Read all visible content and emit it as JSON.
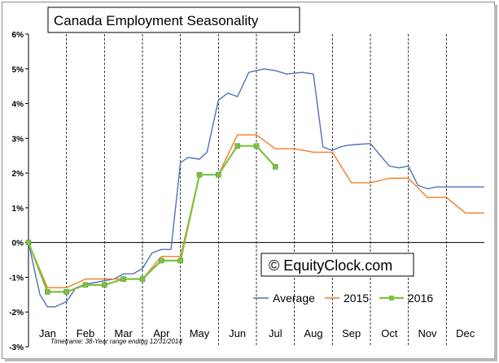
{
  "chart_data": {
    "type": "line",
    "title": "Canada Employment Seasonality",
    "categories": [
      "Jan",
      "Feb",
      "Mar",
      "Apr",
      "May",
      "Jun",
      "Jul",
      "Aug",
      "Sep",
      "Oct",
      "Nov",
      "Dec"
    ],
    "y_ticks": [
      "6%",
      "5%",
      "4%",
      "3%",
      "2%",
      "1%",
      "0%",
      "-1%",
      "-2%",
      "-3%"
    ],
    "ylim": [
      -3,
      6
    ],
    "x_unit": "month index (0 = start of Jan, 12 = end of Dec)",
    "grid": "vertical dashed lines at month boundaries",
    "legend_position": "bottom-right",
    "watermark": "© EquityClock.com",
    "footnote": "Timeframe: 38-Year range ending 12/31/2014",
    "series": [
      {
        "name": "Average",
        "color": "#4f73b8",
        "x": [
          0,
          0.3,
          0.5,
          0.7,
          1.0,
          1.25,
          1.5,
          2.0,
          2.25,
          2.5,
          2.75,
          3.0,
          3.25,
          3.5,
          3.75,
          4.0,
          4.2,
          4.5,
          4.7,
          5.0,
          5.25,
          5.5,
          5.8,
          6.2,
          6.5,
          6.8,
          7.2,
          7.5,
          7.75,
          8.0,
          8.2,
          8.4,
          8.6,
          9.0,
          9.5,
          9.75,
          10.0,
          10.25,
          10.5,
          10.75,
          11.0,
          11.4,
          11.75,
          12.0
        ],
        "values": [
          0,
          -1.5,
          -1.85,
          -1.85,
          -1.7,
          -1.3,
          -1.2,
          -1.1,
          -1.05,
          -0.9,
          -0.9,
          -0.75,
          -0.3,
          -0.2,
          -0.2,
          2.3,
          2.45,
          2.4,
          2.6,
          4.1,
          4.3,
          4.2,
          4.9,
          5.0,
          4.95,
          4.85,
          4.9,
          4.85,
          2.75,
          2.65,
          2.75,
          2.8,
          2.82,
          2.85,
          2.2,
          2.15,
          2.2,
          1.65,
          1.55,
          1.6,
          1.6,
          1.6,
          1.6,
          1.6
        ]
      },
      {
        "name": "2015",
        "color": "#f07d2a",
        "x": [
          0,
          0.5,
          1.0,
          1.5,
          2.0,
          2.5,
          3.0,
          3.5,
          4.0,
          4.5,
          5.0,
          5.5,
          6.0,
          6.5,
          7.0,
          7.5,
          8.0,
          8.5,
          9.0,
          9.5,
          10.0,
          10.5,
          11.0,
          11.5,
          12.0
        ],
        "values": [
          0,
          -1.3,
          -1.3,
          -1.05,
          -1.05,
          -1.05,
          -1.05,
          -0.4,
          -0.4,
          1.95,
          1.95,
          3.1,
          3.1,
          2.7,
          2.7,
          2.6,
          2.6,
          1.72,
          1.72,
          1.85,
          1.85,
          1.3,
          1.3,
          0.85,
          0.85
        ]
      },
      {
        "name": "2016",
        "color": "#7dc242",
        "x": [
          0,
          0.5,
          1.0,
          1.5,
          2.0,
          2.5,
          3.0,
          3.5,
          4.0,
          4.5,
          5.0,
          5.5,
          6.0,
          6.5
        ],
        "values": [
          0,
          -1.42,
          -1.42,
          -1.22,
          -1.22,
          -1.05,
          -1.05,
          -0.52,
          -0.52,
          1.95,
          1.95,
          2.78,
          2.78,
          2.18
        ]
      }
    ]
  }
}
